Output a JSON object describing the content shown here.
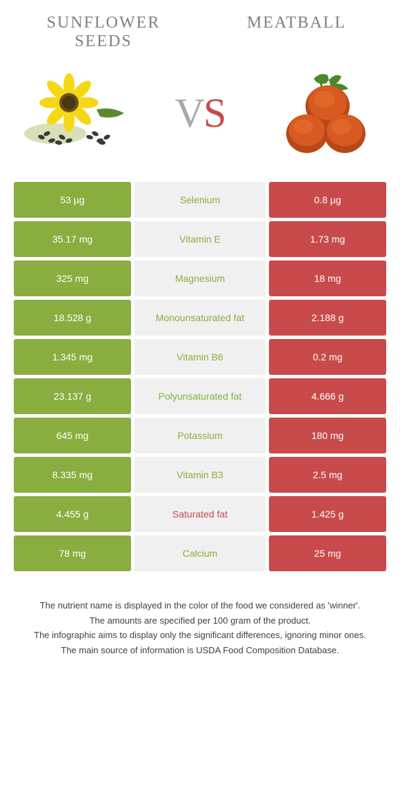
{
  "header": {
    "left_title": "Sunflower seeds",
    "right_title": "Meatball",
    "vs_v": "V",
    "vs_s": "S"
  },
  "colors": {
    "left": "#8aad3f",
    "right": "#c94a4a",
    "center_bg": "#f0f0f0",
    "header_text": "#808080"
  },
  "rows": [
    {
      "left": "53 µg",
      "label": "Selenium",
      "right": "0.8 µg",
      "winner": "left"
    },
    {
      "left": "35.17 mg",
      "label": "Vitamin E",
      "right": "1.73 mg",
      "winner": "left"
    },
    {
      "left": "325 mg",
      "label": "Magnesium",
      "right": "18 mg",
      "winner": "left"
    },
    {
      "left": "18.528 g",
      "label": "Monounsaturated fat",
      "right": "2.188 g",
      "winner": "left"
    },
    {
      "left": "1.345 mg",
      "label": "Vitamin B6",
      "right": "0.2 mg",
      "winner": "left"
    },
    {
      "left": "23.137 g",
      "label": "Polyunsaturated fat",
      "right": "4.666 g",
      "winner": "left"
    },
    {
      "left": "645 mg",
      "label": "Potassium",
      "right": "180 mg",
      "winner": "left"
    },
    {
      "left": "8.335 mg",
      "label": "Vitamin B3",
      "right": "2.5 mg",
      "winner": "left"
    },
    {
      "left": "4.455 g",
      "label": "Saturated fat",
      "right": "1.425 g",
      "winner": "right"
    },
    {
      "left": "78 mg",
      "label": "Calcium",
      "right": "25 mg",
      "winner": "left"
    }
  ],
  "footer": {
    "l1": "The nutrient name is displayed in the color of the food we considered as 'winner'.",
    "l2": "The amounts are specified per 100 gram of the product.",
    "l3": "The infographic aims to display only the significant differences, ignoring minor ones.",
    "l4": "The main source of information is USDA Food Composition Database."
  }
}
